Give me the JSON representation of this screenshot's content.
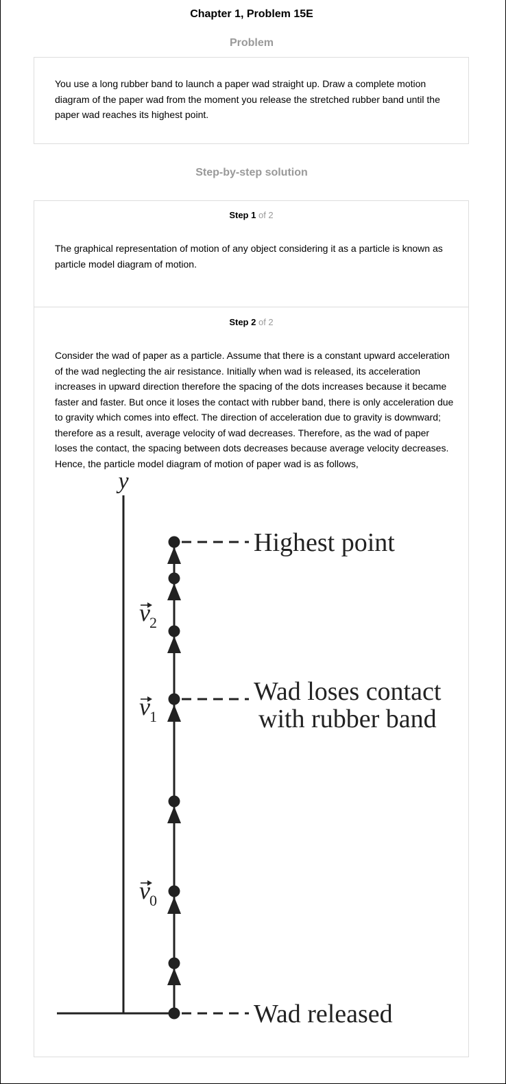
{
  "header": {
    "title": "Chapter 1, Problem 15E"
  },
  "problem": {
    "heading": "Problem",
    "text": "You use a long rubber band to launch a paper wad straight up. Draw a complete motion diagram of the paper wad from the moment you release the stretched rubber band until the paper wad reaches its highest point."
  },
  "solution": {
    "heading": "Step-by-step solution",
    "steps": [
      {
        "label": "Step 1",
        "of": "of 2",
        "text": "The graphical representation of motion of any object considering it as a particle is known as particle model diagram of motion."
      },
      {
        "label": "Step 2",
        "of": "of 2",
        "text": "Consider the wad of paper as a particle. Assume that there is a constant upward acceleration of the wad neglecting the air resistance. Initially when wad is released, its acceleration increases in upward direction therefore the spacing of the dots increases because it became faster and faster. But once it loses the contact with rubber band, there is only acceleration due to gravity which comes into effect. The direction of acceleration due to gravity is downward; therefore as a result, average velocity of wad decreases. Therefore, as the wad of paper loses the contact, the spacing between dots decreases because average velocity decreases. Hence, the particle model diagram of motion of paper wad is as follows,"
      }
    ]
  },
  "diagram": {
    "axis_label": "y",
    "labels": {
      "highest": "Highest point",
      "loses_line1": "Wad loses contact",
      "loses_line2": "with rubber band",
      "released": "Wad released"
    },
    "velocity_labels": [
      {
        "symbol": "v",
        "subscript": "2"
      },
      {
        "symbol": "v",
        "subscript": "1"
      },
      {
        "symbol": "v",
        "subscript": "0"
      }
    ]
  }
}
